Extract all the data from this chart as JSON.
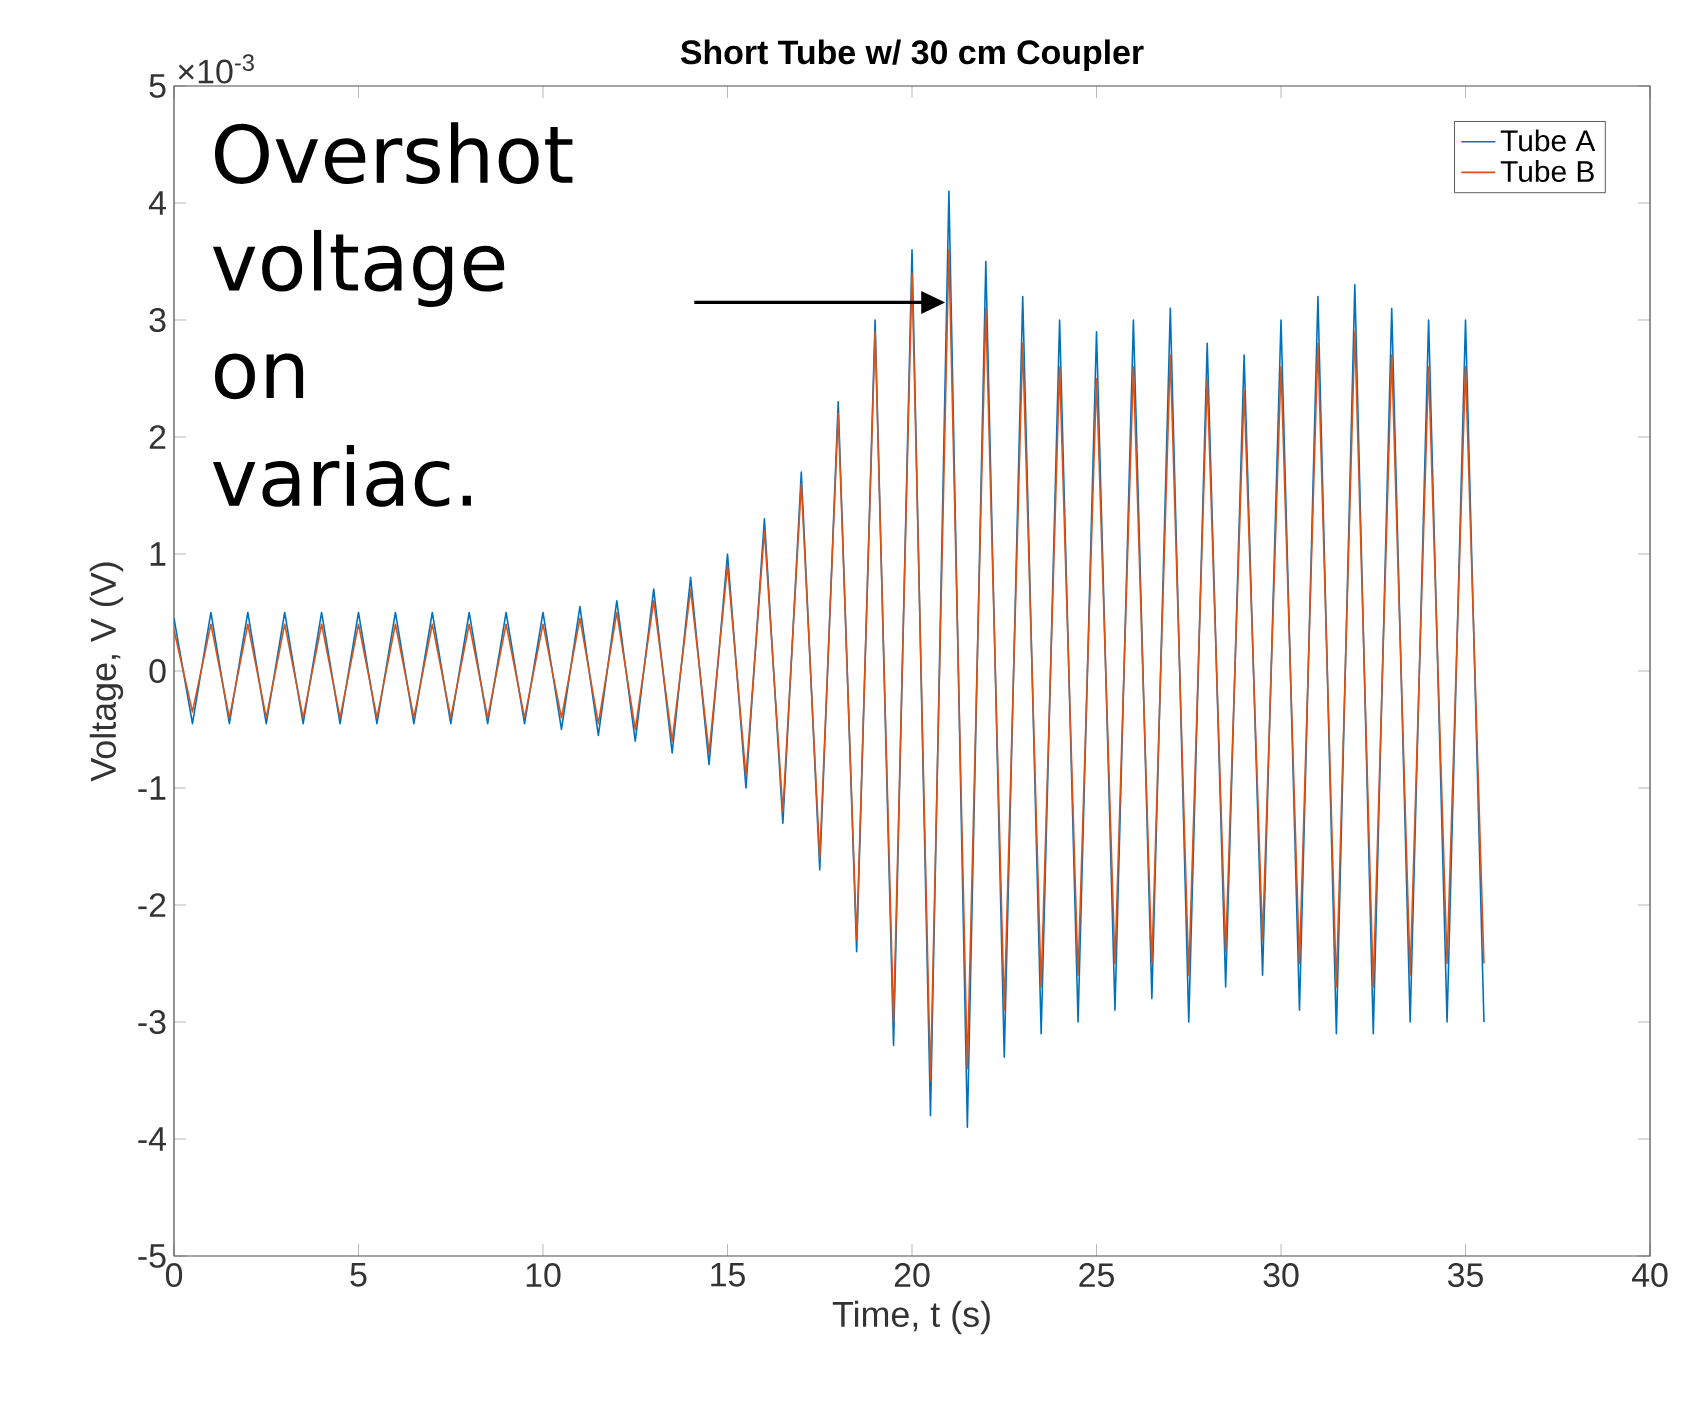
{
  "chart_data": {
    "type": "line",
    "title": "Short Tube w/ 30 cm Coupler",
    "xlabel": "Time, t (s)",
    "ylabel": "Voltage, V (V)",
    "xlim": [
      0,
      40
    ],
    "xticks": [
      0,
      5,
      10,
      15,
      20,
      25,
      30,
      35,
      40
    ],
    "ylim": [
      -5,
      5
    ],
    "yticks": [
      -5,
      -4,
      -3,
      -2,
      -1,
      0,
      1,
      2,
      3,
      4,
      5
    ],
    "grid": false,
    "legend": "top right",
    "marker": "none",
    "line_style": "solid",
    "annotations": [
      "×10$^{-3}$",
      "Overshot voltage on variac."
    ],
    "series": [
      {
        "name": "Tube A",
        "color": "#0072bd",
        "x": [
          0,
          0.5,
          1,
          1.5,
          2,
          2.5,
          3,
          3.5,
          4,
          4.5,
          5,
          5.5,
          6,
          6.5,
          7,
          7.5,
          8,
          8.5,
          9,
          9.5,
          10,
          10.5,
          11,
          11.5,
          12,
          12.5,
          13,
          13.5,
          14,
          14.5,
          15,
          15.5,
          16,
          16.5,
          17,
          17.5,
          18,
          18.5,
          19,
          19.5,
          20,
          20.5,
          21,
          21.5,
          22,
          22.5,
          23,
          23.5,
          24,
          24.5,
          25,
          25.5,
          26,
          26.5,
          27,
          27.5,
          28,
          28.5,
          29,
          29.5,
          30,
          30.5,
          31,
          31.5,
          32,
          32.5,
          33,
          33.5,
          34,
          34.5,
          35,
          35.5
        ],
        "values": [
          0.45,
          -0.45,
          0.5,
          -0.45,
          0.5,
          -0.45,
          0.5,
          -0.45,
          0.5,
          -0.45,
          0.5,
          -0.45,
          0.5,
          -0.45,
          0.5,
          -0.45,
          0.5,
          -0.45,
          0.5,
          -0.45,
          0.5,
          -0.5,
          0.55,
          -0.55,
          0.6,
          -0.6,
          0.7,
          -0.7,
          0.8,
          -0.8,
          1.0,
          -1.0,
          1.3,
          -1.3,
          1.7,
          -1.7,
          2.3,
          -2.4,
          3.0,
          -3.2,
          3.6,
          -3.8,
          4.1,
          -3.9,
          3.5,
          -3.3,
          3.2,
          -3.1,
          3.0,
          -3.0,
          2.9,
          -2.9,
          3.0,
          -2.8,
          3.1,
          -3.0,
          2.8,
          -2.7,
          2.7,
          -2.6,
          3.0,
          -2.9,
          3.2,
          -3.1,
          3.3,
          -3.1,
          3.1,
          -3.0,
          3.0,
          -3.0,
          3.0,
          -3.0
        ]
      },
      {
        "name": "Tube B",
        "color": "#d95319",
        "x": [
          0,
          0.5,
          1,
          1.5,
          2,
          2.5,
          3,
          3.5,
          4,
          4.5,
          5,
          5.5,
          6,
          6.5,
          7,
          7.5,
          8,
          8.5,
          9,
          9.5,
          10,
          10.5,
          11,
          11.5,
          12,
          12.5,
          13,
          13.5,
          14,
          14.5,
          15,
          15.5,
          16,
          16.5,
          17,
          17.5,
          18,
          18.5,
          19,
          19.5,
          20,
          20.5,
          21,
          21.5,
          22,
          22.5,
          23,
          23.5,
          24,
          24.5,
          25,
          25.5,
          26,
          26.5,
          27,
          27.5,
          28,
          28.5,
          29,
          29.5,
          30,
          30.5,
          31,
          31.5,
          32,
          32.5,
          33,
          33.5,
          34,
          34.5,
          35,
          35.5
        ],
        "values": [
          0.35,
          -0.35,
          0.4,
          -0.4,
          0.4,
          -0.4,
          0.4,
          -0.4,
          0.4,
          -0.4,
          0.4,
          -0.4,
          0.4,
          -0.4,
          0.4,
          -0.4,
          0.4,
          -0.4,
          0.4,
          -0.4,
          0.4,
          -0.4,
          0.45,
          -0.45,
          0.5,
          -0.5,
          0.6,
          -0.6,
          0.7,
          -0.7,
          0.9,
          -0.9,
          1.2,
          -1.2,
          1.6,
          -1.6,
          2.2,
          -2.3,
          2.9,
          -3.0,
          3.4,
          -3.5,
          3.6,
          -3.4,
          3.1,
          -2.9,
          2.8,
          -2.7,
          2.6,
          -2.6,
          2.5,
          -2.5,
          2.6,
          -2.5,
          2.7,
          -2.6,
          2.5,
          -2.4,
          2.4,
          -2.3,
          2.6,
          -2.5,
          2.8,
          -2.7,
          2.9,
          -2.7,
          2.7,
          -2.6,
          2.6,
          -2.5,
          2.6,
          -2.5
        ]
      }
    ]
  }
}
